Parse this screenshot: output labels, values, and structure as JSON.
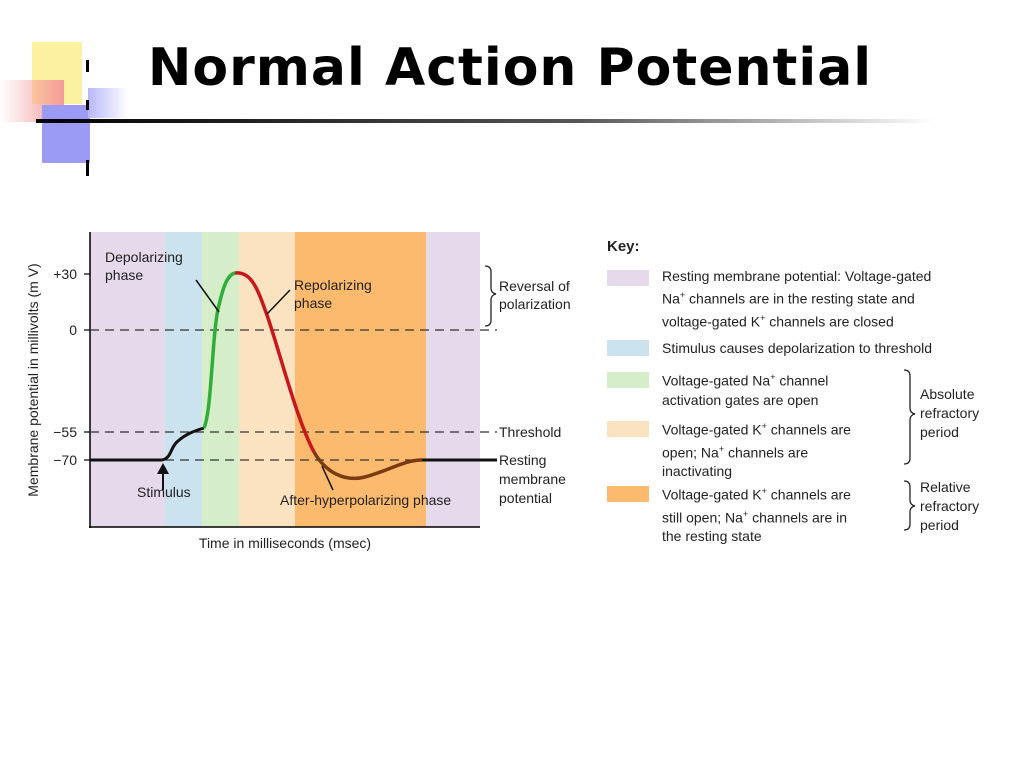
{
  "slide": {
    "title": "Normal Action Potential"
  },
  "colors": {
    "resting": "#e5d9ec",
    "stimulus": "#cbe2ef",
    "na_activation": "#d6edc9",
    "k_open": "#fbe3c2",
    "k_still_open": "#fbba6d",
    "trace_black": "#111111",
    "trace_green": "#2fae3a",
    "trace_red": "#c8171c",
    "trace_brown": "#7a3b12"
  },
  "graph": {
    "y_axis_label": "Membrane potential in millivolts (m V)",
    "x_axis_label": "Time in milliseconds (msec)",
    "y_ticks": [
      "+30",
      "0",
      "−55",
      "−70"
    ],
    "labels": {
      "depolarizing_1": "Depolarizing",
      "depolarizing_2": "phase",
      "repolarizing_1": "Repolarizing",
      "repolarizing_2": "phase",
      "stimulus": "Stimulus",
      "after_hyperpolarizing": "After-hyperpolarizing phase"
    },
    "right_labels": {
      "reversal_1": "Reversal of",
      "reversal_2": "polarization",
      "threshold": "Threshold",
      "resting_1": "Resting",
      "resting_2": "membrane",
      "resting_3": "potential"
    }
  },
  "key": {
    "title": "Key:",
    "items": [
      {
        "color": "#e5d9ec",
        "line1": "Resting membrane potential: Voltage-gated",
        "line2_pre": "Na",
        "line2_sup": "+",
        "line2_post": " channels are in the resting state and",
        "line3_pre": "voltage-gated K",
        "line3_sup": "+",
        "line3_post": " channels are closed"
      },
      {
        "color": "#cbe2ef",
        "line1": "Stimulus causes depolarization to threshold"
      },
      {
        "color": "#d6edc9",
        "line1_pre": "Voltage-gated Na",
        "line1_sup": "+",
        "line1_post": " channel",
        "line2": "activation gates are open"
      },
      {
        "color": "#fbe3c2",
        "line1_pre": "Voltage-gated K",
        "line1_sup": "+",
        "line1_post": " channels are",
        "line2_pre": "open; Na",
        "line2_sup": "+",
        "line2_post": " channels are",
        "line3": "inactivating"
      },
      {
        "color": "#fbba6d",
        "line1_pre": "Voltage-gated K",
        "line1_sup": "+",
        "line1_post": " channels are",
        "line2_pre": "still open; Na",
        "line2_sup": "+",
        "line2_post": " channels are in",
        "line3": "the resting state"
      }
    ],
    "absolute_1": "Absolute",
    "absolute_2": "refractory",
    "absolute_3": "period",
    "relative_1": "Relative",
    "relative_2": "refractory",
    "relative_3": "period"
  }
}
